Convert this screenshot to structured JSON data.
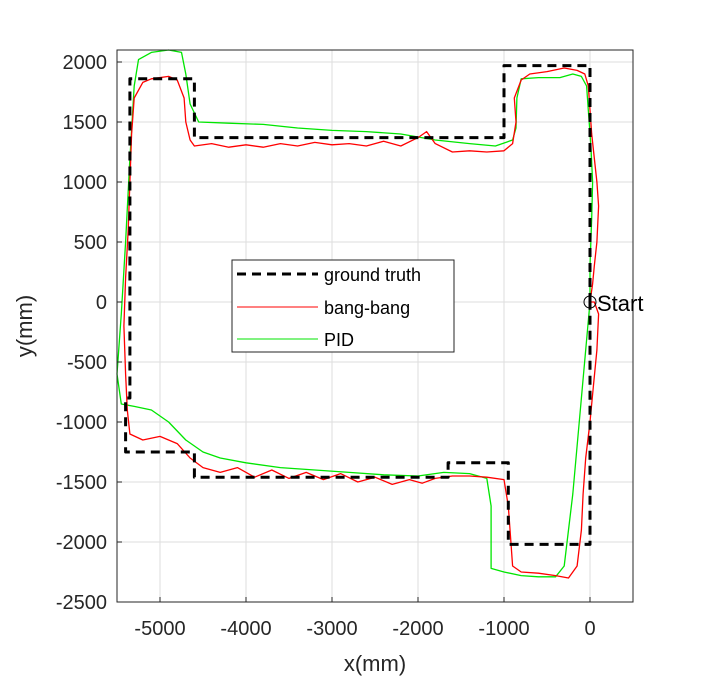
{
  "chart_data": {
    "type": "line",
    "title": "",
    "xlabel": "x(mm)",
    "ylabel": "y(mm)",
    "xlim": [
      -5500,
      500
    ],
    "ylim": [
      -2500,
      2100
    ],
    "grid": true,
    "legend_placement": "center-left",
    "x_ticks": [
      {
        "value": -5000,
        "label": "-5000"
      },
      {
        "value": -4000,
        "label": "-4000"
      },
      {
        "value": -3000,
        "label": "-3000"
      },
      {
        "value": -2000,
        "label": "-2000"
      },
      {
        "value": -1000,
        "label": "-1000"
      },
      {
        "value": 0,
        "label": "0"
      }
    ],
    "y_ticks": [
      {
        "value": 2000,
        "label": "2000"
      },
      {
        "value": 1500,
        "label": "1500"
      },
      {
        "value": 1000,
        "label": "1000"
      },
      {
        "value": 500,
        "label": "500"
      },
      {
        "value": 0,
        "label": "0"
      },
      {
        "value": -500,
        "label": "-500"
      },
      {
        "value": -1000,
        "label": "-1000"
      },
      {
        "value": -1500,
        "label": "-1500"
      },
      {
        "value": -2000,
        "label": "-2000"
      },
      {
        "value": -2500,
        "label": "-2500"
      }
    ],
    "annotation": {
      "text": "Start",
      "x": 0,
      "y": 0
    },
    "series": [
      {
        "name": "ground truth",
        "color": "#000000",
        "style": "dashed",
        "points": [
          [
            0,
            0
          ],
          [
            0,
            1970
          ],
          [
            -1000,
            1970
          ],
          [
            -1000,
            1370
          ],
          [
            -4600,
            1370
          ],
          [
            -4600,
            1860
          ],
          [
            -5350,
            1860
          ],
          [
            -5350,
            -800
          ],
          [
            -5400,
            -800
          ],
          [
            -5400,
            -1250
          ],
          [
            -4600,
            -1250
          ],
          [
            -4600,
            -1460
          ],
          [
            -1650,
            -1460
          ],
          [
            -1650,
            -1340
          ],
          [
            -950,
            -1340
          ],
          [
            -950,
            -2020
          ],
          [
            0,
            -2020
          ],
          [
            0,
            0
          ]
        ]
      },
      {
        "name": "bang-bang",
        "color": "#ff0000",
        "style": "solid",
        "points": [
          [
            0,
            0
          ],
          [
            30,
            150
          ],
          [
            50,
            300
          ],
          [
            80,
            500
          ],
          [
            100,
            800
          ],
          [
            80,
            1000
          ],
          [
            50,
            1200
          ],
          [
            20,
            1400
          ],
          [
            0,
            1600
          ],
          [
            -20,
            1800
          ],
          [
            -60,
            1900
          ],
          [
            -150,
            1930
          ],
          [
            -300,
            1950
          ],
          [
            -500,
            1920
          ],
          [
            -700,
            1900
          ],
          [
            -800,
            1850
          ],
          [
            -880,
            1700
          ],
          [
            -860,
            1500
          ],
          [
            -900,
            1320
          ],
          [
            -1000,
            1260
          ],
          [
            -1200,
            1250
          ],
          [
            -1400,
            1260
          ],
          [
            -1600,
            1250
          ],
          [
            -1800,
            1320
          ],
          [
            -1900,
            1420
          ],
          [
            -2000,
            1370
          ],
          [
            -2200,
            1300
          ],
          [
            -2400,
            1340
          ],
          [
            -2600,
            1300
          ],
          [
            -2800,
            1320
          ],
          [
            -3000,
            1310
          ],
          [
            -3200,
            1330
          ],
          [
            -3400,
            1300
          ],
          [
            -3600,
            1320
          ],
          [
            -3800,
            1290
          ],
          [
            -4000,
            1310
          ],
          [
            -4200,
            1290
          ],
          [
            -4400,
            1320
          ],
          [
            -4600,
            1300
          ],
          [
            -4650,
            1350
          ],
          [
            -4700,
            1500
          ],
          [
            -4720,
            1700
          ],
          [
            -4800,
            1850
          ],
          [
            -4900,
            1880
          ],
          [
            -5100,
            1860
          ],
          [
            -5200,
            1830
          ],
          [
            -5300,
            1700
          ],
          [
            -5330,
            1400
          ],
          [
            -5350,
            1000
          ],
          [
            -5370,
            600
          ],
          [
            -5400,
            200
          ],
          [
            -5420,
            -200
          ],
          [
            -5400,
            -600
          ],
          [
            -5380,
            -900
          ],
          [
            -5350,
            -1100
          ],
          [
            -5200,
            -1150
          ],
          [
            -5000,
            -1120
          ],
          [
            -4800,
            -1180
          ],
          [
            -4650,
            -1300
          ],
          [
            -4500,
            -1380
          ],
          [
            -4300,
            -1420
          ],
          [
            -4100,
            -1380
          ],
          [
            -3900,
            -1460
          ],
          [
            -3700,
            -1400
          ],
          [
            -3500,
            -1470
          ],
          [
            -3300,
            -1420
          ],
          [
            -3100,
            -1480
          ],
          [
            -2900,
            -1430
          ],
          [
            -2700,
            -1500
          ],
          [
            -2500,
            -1460
          ],
          [
            -2300,
            -1520
          ],
          [
            -2100,
            -1480
          ],
          [
            -1950,
            -1510
          ],
          [
            -1800,
            -1470
          ],
          [
            -1600,
            -1450
          ],
          [
            -1400,
            -1450
          ],
          [
            -1200,
            -1460
          ],
          [
            -1000,
            -1480
          ],
          [
            -950,
            -1700
          ],
          [
            -920,
            -2000
          ],
          [
            -900,
            -2200
          ],
          [
            -800,
            -2250
          ],
          [
            -600,
            -2260
          ],
          [
            -400,
            -2280
          ],
          [
            -250,
            -2300
          ],
          [
            -150,
            -2200
          ],
          [
            -100,
            -1900
          ],
          [
            -80,
            -1600
          ],
          [
            -50,
            -1300
          ],
          [
            0,
            -1000
          ],
          [
            40,
            -700
          ],
          [
            80,
            -400
          ],
          [
            100,
            -100
          ],
          [
            50,
            0
          ],
          [
            0,
            0
          ]
        ]
      },
      {
        "name": "PID",
        "color": "#00e600",
        "style": "solid",
        "points": [
          [
            0,
            0
          ],
          [
            0,
            300
          ],
          [
            20,
            700
          ],
          [
            30,
            1000
          ],
          [
            10,
            1300
          ],
          [
            -20,
            1600
          ],
          [
            -40,
            1800
          ],
          [
            -100,
            1880
          ],
          [
            -200,
            1900
          ],
          [
            -350,
            1870
          ],
          [
            -600,
            1870
          ],
          [
            -800,
            1860
          ],
          [
            -850,
            1700
          ],
          [
            -860,
            1450
          ],
          [
            -900,
            1350
          ],
          [
            -1100,
            1300
          ],
          [
            -1400,
            1320
          ],
          [
            -1800,
            1350
          ],
          [
            -2200,
            1400
          ],
          [
            -2600,
            1420
          ],
          [
            -3000,
            1430
          ],
          [
            -3400,
            1450
          ],
          [
            -3800,
            1480
          ],
          [
            -4200,
            1490
          ],
          [
            -4550,
            1500
          ],
          [
            -4650,
            1650
          ],
          [
            -4700,
            1900
          ],
          [
            -4750,
            2080
          ],
          [
            -4900,
            2100
          ],
          [
            -5100,
            2080
          ],
          [
            -5250,
            2020
          ],
          [
            -5300,
            1800
          ],
          [
            -5350,
            1200
          ],
          [
            -5400,
            500
          ],
          [
            -5450,
            -100
          ],
          [
            -5500,
            -600
          ],
          [
            -5450,
            -850
          ],
          [
            -5300,
            -870
          ],
          [
            -5100,
            -900
          ],
          [
            -4900,
            -1000
          ],
          [
            -4700,
            -1150
          ],
          [
            -4500,
            -1250
          ],
          [
            -4300,
            -1300
          ],
          [
            -4000,
            -1340
          ],
          [
            -3600,
            -1380
          ],
          [
            -3200,
            -1400
          ],
          [
            -2800,
            -1420
          ],
          [
            -2400,
            -1440
          ],
          [
            -2000,
            -1450
          ],
          [
            -1700,
            -1420
          ],
          [
            -1400,
            -1430
          ],
          [
            -1200,
            -1470
          ],
          [
            -1150,
            -1700
          ],
          [
            -1150,
            -2000
          ],
          [
            -1150,
            -2220
          ],
          [
            -1000,
            -2250
          ],
          [
            -800,
            -2280
          ],
          [
            -600,
            -2290
          ],
          [
            -400,
            -2290
          ],
          [
            -300,
            -2200
          ],
          [
            -250,
            -1900
          ],
          [
            -200,
            -1600
          ],
          [
            -150,
            -1200
          ],
          [
            -100,
            -800
          ],
          [
            -50,
            -400
          ],
          [
            0,
            0
          ]
        ]
      }
    ]
  }
}
